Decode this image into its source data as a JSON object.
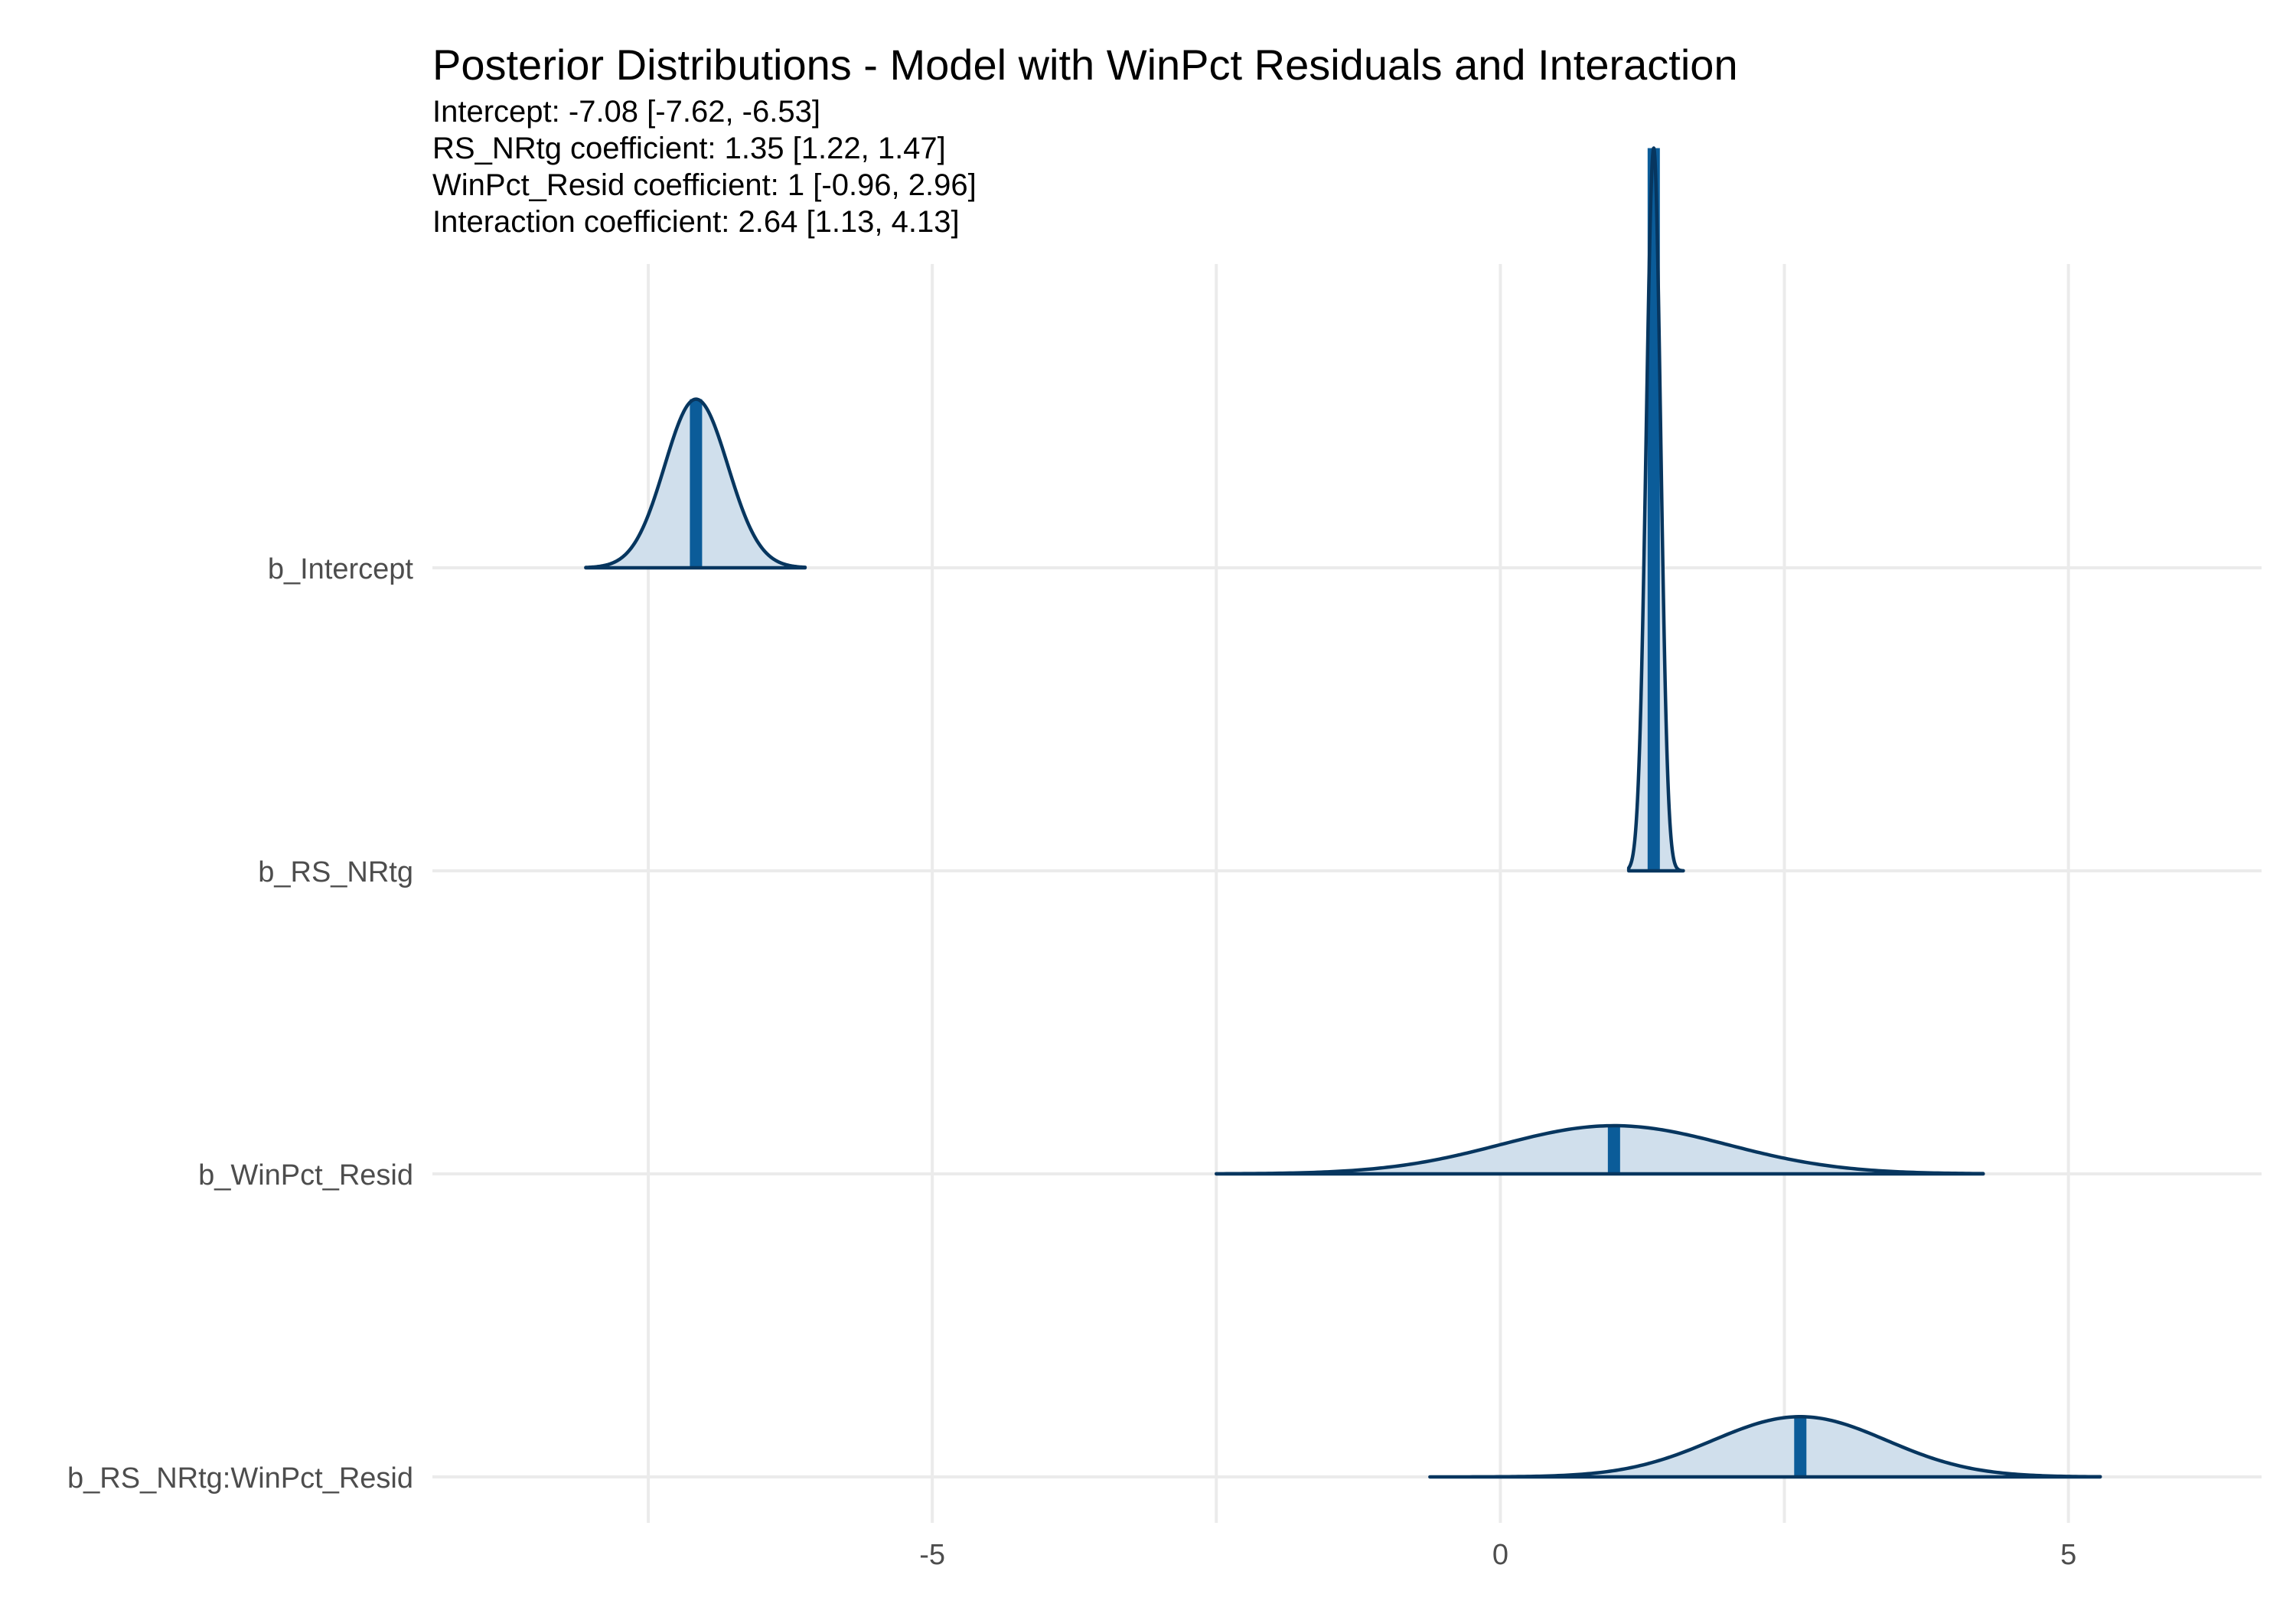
{
  "chart_data": {
    "type": "area",
    "title": "Posterior Distributions - Model with WinPct Residuals and Interaction",
    "subtitle": [
      "Intercept: -7.08 [-7.62, -6.53]",
      "RS_NRtg coefficient: 1.35 [1.22, 1.47]",
      "WinPct_Resid coefficient: 1 [-0.96, 2.96]",
      "Interaction coefficient: 2.64 [1.13, 4.13]"
    ],
    "xlabel": "",
    "ylabel": "",
    "xlim": [
      -9.4,
      6.7
    ],
    "x_ticks": [
      -5,
      0,
      5
    ],
    "x_tick_labels": [
      "-5",
      "0",
      "5"
    ],
    "x_minor_gridlines": [
      -7.5,
      -2.5,
      2.5
    ],
    "grid": true,
    "colors": {
      "fill": "#d0dfec",
      "outline": "#07365f",
      "median_bar": "#0b5c99",
      "grid": "#ebebeb",
      "tick_text": "#4d4d4d"
    },
    "series": [
      {
        "name": "b_Intercept",
        "median": -7.08,
        "lo": -7.62,
        "hi": -6.53,
        "min": -8.05,
        "max": -6.12,
        "peak": 0.21
      },
      {
        "name": "b_RS_NRtg",
        "median": 1.35,
        "lo": 1.22,
        "hi": 1.47,
        "min": 1.13,
        "max": 1.61,
        "peak": 0.9
      },
      {
        "name": "b_WinPct_Resid",
        "median": 1.0,
        "lo": -0.96,
        "hi": 2.96,
        "min": -2.5,
        "max": 4.25,
        "peak": 0.06
      },
      {
        "name": "b_RS_NRtg:WinPct_Resid",
        "median": 2.64,
        "lo": 1.13,
        "hi": 4.13,
        "min": -0.62,
        "max": 5.28,
        "peak": 0.075
      }
    ]
  }
}
